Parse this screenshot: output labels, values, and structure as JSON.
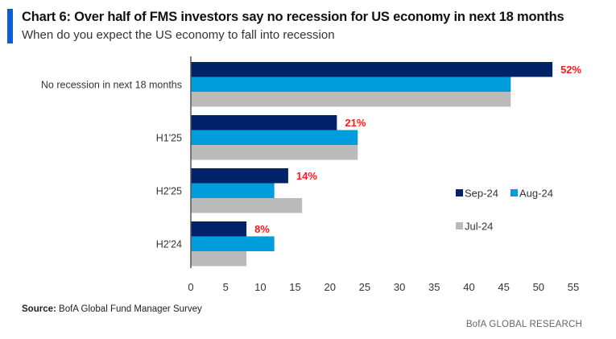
{
  "header": {
    "title": "Chart 6: Over half of FMS investors say no recession for US economy in next 18 months",
    "subtitle": "When do you expect the US economy to fall into recession"
  },
  "footer": {
    "source_label": "Source:",
    "source_text": " BofA Global Fund Manager Survey",
    "brand": "BofA GLOBAL RESEARCH"
  },
  "colors": {
    "accent": "#0b5ed7",
    "sep24": "#012169",
    "aug24": "#009ddc",
    "jul24": "#bbbbbb",
    "data_label": "#ff1a1a"
  },
  "chart_data": {
    "type": "bar",
    "orientation": "horizontal",
    "title": "Chart 6: Over half of FMS investors say no recession for US economy in next 18 months",
    "subtitle": "When do you expect the US economy to fall into recession",
    "xlabel": "",
    "ylabel": "",
    "xlim": [
      0,
      55
    ],
    "xticks": [
      0,
      5,
      10,
      15,
      20,
      25,
      30,
      35,
      40,
      45,
      50,
      55
    ],
    "grid": false,
    "legend_position": "right",
    "categories": [
      "No recession in next 18 months",
      "H1'25",
      "H2'25",
      "H2'24"
    ],
    "series": [
      {
        "name": "Sep-24",
        "color": "#012169",
        "values": [
          52,
          21,
          14,
          8
        ]
      },
      {
        "name": "Aug-24",
        "color": "#009ddc",
        "values": [
          46,
          24,
          12,
          12
        ]
      },
      {
        "name": "Jul-24",
        "color": "#bbbbbb",
        "values": [
          46,
          24,
          16,
          8
        ]
      }
    ],
    "data_labels": [
      {
        "category": "No recession in next 18 months",
        "series": "Sep-24",
        "text": "52%"
      },
      {
        "category": "H1'25",
        "series": "Sep-24",
        "text": "21%"
      },
      {
        "category": "H2'25",
        "series": "Sep-24",
        "text": "14%"
      },
      {
        "category": "H2'24",
        "series": "Sep-24",
        "text": "8%"
      }
    ],
    "legend": [
      {
        "label": "Sep-24",
        "color": "#012169"
      },
      {
        "label": "Aug-24",
        "color": "#009ddc"
      },
      {
        "label": "Jul-24",
        "color": "#bbbbbb"
      }
    ]
  }
}
